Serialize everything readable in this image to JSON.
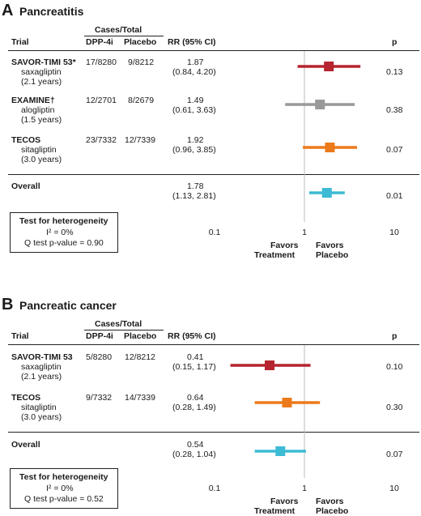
{
  "panels": [
    {
      "letter": "A",
      "title": "Pancreatitis",
      "headers": {
        "group": "Cases/Total",
        "trial": "Trial",
        "dpp": "DPP-4i",
        "placebo": "Placebo",
        "rr": "RR (95% CI)",
        "p": "p"
      },
      "rows": [
        {
          "name": "SAVOR-TIMI 53*",
          "drug": "saxagliptin",
          "dur": "(2.1 years)",
          "dpp": "17/8280",
          "placebo": "9/8212",
          "rr": "1.87",
          "ci": "(0.84, 4.20)",
          "p": "0.13"
        },
        {
          "name": "EXAMINE†",
          "drug": "alogliptin",
          "dur": "(1.5 years)",
          "dpp": "12/2701",
          "placebo": "8/2679",
          "rr": "1.49",
          "ci": "(0.61, 3.63)",
          "p": "0.38"
        },
        {
          "name": "TECOS",
          "drug": "sitagliptin",
          "dur": "(3.0 years)",
          "dpp": "23/7332",
          "placebo": "12/7339",
          "rr": "1.92",
          "ci": "(0.96, 3.85)",
          "p": "0.07"
        }
      ],
      "overall": {
        "name": "Overall",
        "rr": "1.78",
        "ci": "(1.13, 2.81)",
        "p": "0.01"
      },
      "het": {
        "title": "Test for heterogeneity",
        "i2": "I² = 0%",
        "q": "Q test p-value = 0.90"
      },
      "favors_left": [
        "Favors",
        "Treatment"
      ],
      "favors_right": [
        "Favors",
        "Placebo"
      ]
    },
    {
      "letter": "B",
      "title": "Pancreatic cancer",
      "headers": {
        "group": "Cases/Total",
        "trial": "Trial",
        "dpp": "DPP-4i",
        "placebo": "Placebo",
        "rr": "RR (95% CI)",
        "p": "p"
      },
      "rows": [
        {
          "name": "SAVOR-TIMI 53",
          "drug": "saxagliptin",
          "dur": "(2.1 years)",
          "dpp": "5/8280",
          "placebo": "12/8212",
          "rr": "0.41",
          "ci": "(0.15, 1.17)",
          "p": "0.10"
        },
        {
          "name": "TECOS",
          "drug": "sitagliptin",
          "dur": "(3.0 years)",
          "dpp": "9/7332",
          "placebo": "14/7339",
          "rr": "0.64",
          "ci": "(0.28, 1.49)",
          "p": "0.30"
        }
      ],
      "overall": {
        "name": "Overall",
        "rr": "0.54",
        "ci": "(0.28, 1.04)",
        "p": "0.07"
      },
      "het": {
        "title": "Test for heterogeneity",
        "i2": "I² = 0%",
        "q": "Q test p-value = 0.52"
      },
      "favors_left": [
        "Favors",
        "Treatment"
      ],
      "favors_right": [
        "Favors",
        "Placebo"
      ]
    }
  ],
  "chart_data": [
    {
      "type": "forest",
      "title": "Pancreatitis",
      "xscale": "log",
      "xlim": [
        0.1,
        10
      ],
      "xticks": [
        "0.1",
        "1",
        "10"
      ],
      "reference_line": 1,
      "series": [
        {
          "name": "SAVOR-TIMI 53",
          "rr": 1.87,
          "lo": 0.84,
          "hi": 4.2,
          "color": "#b5242f"
        },
        {
          "name": "EXAMINE",
          "rr": 1.49,
          "lo": 0.61,
          "hi": 3.63,
          "color": "#999999"
        },
        {
          "name": "TECOS",
          "rr": 1.92,
          "lo": 0.96,
          "hi": 3.85,
          "color": "#ec7a1a"
        },
        {
          "name": "Overall",
          "rr": 1.78,
          "lo": 1.13,
          "hi": 2.81,
          "color": "#3dbbd4"
        }
      ]
    },
    {
      "type": "forest",
      "title": "Pancreatic cancer",
      "xscale": "log",
      "xlim": [
        0.1,
        10
      ],
      "xticks": [
        "0.1",
        "1",
        "10"
      ],
      "reference_line": 1,
      "series": [
        {
          "name": "SAVOR-TIMI 53",
          "rr": 0.41,
          "lo": 0.15,
          "hi": 1.17,
          "color": "#b5242f"
        },
        {
          "name": "TECOS",
          "rr": 0.64,
          "lo": 0.28,
          "hi": 1.49,
          "color": "#ec7a1a"
        },
        {
          "name": "Overall",
          "rr": 0.54,
          "lo": 0.28,
          "hi": 1.04,
          "color": "#3dbbd4"
        }
      ]
    }
  ]
}
